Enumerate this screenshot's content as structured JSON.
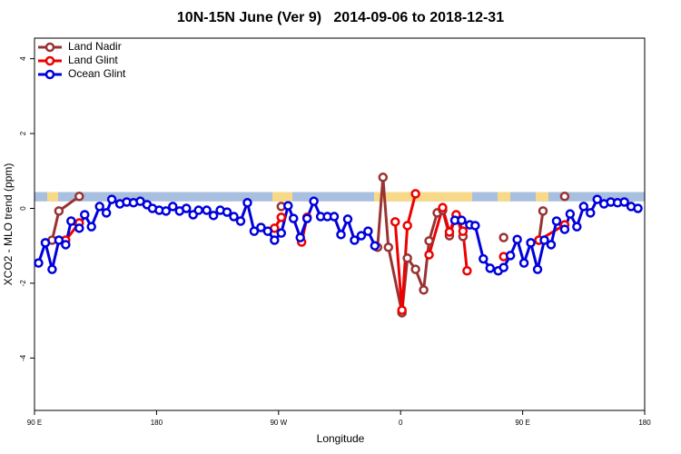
{
  "chart_data": {
    "type": "line",
    "title": "10N-15N June (Ver 9)   2014-09-06 to 2018-12-31",
    "x_label": "Longitude",
    "y_label": "XCO2 - MLO trend (ppm)",
    "xlim": [
      90,
      540
    ],
    "ylim": [
      -5.4,
      4.55
    ],
    "xticks": [
      {
        "value": 90,
        "label": "90 E"
      },
      {
        "value": 180,
        "label": "180"
      },
      {
        "value": 270,
        "label": "90 W"
      },
      {
        "value": 360,
        "label": "0"
      },
      {
        "value": 450,
        "label": "90 E"
      },
      {
        "value": 540,
        "label": "180"
      }
    ],
    "yticks": [
      -4,
      -2,
      0,
      2,
      4
    ],
    "legend": "top-left",
    "series": [
      {
        "name": "Land Nadir",
        "color": "#993333",
        "x": [
          103,
          108,
          123,
          200,
          272,
          280,
          343,
          347,
          351,
          361,
          365,
          371,
          377,
          381,
          387,
          391,
          396,
          401,
          406,
          420,
          436,
          450,
          462,
          465,
          475,
          481
        ],
        "values": [
          -0.85,
          -0.07,
          0.32,
          null,
          0.05,
          null,
          -1.04,
          0.83,
          -1.04,
          -2.79,
          -1.33,
          -1.63,
          -2.18,
          -0.87,
          -0.12,
          -0.05,
          -0.73,
          -0.19,
          -0.75,
          null,
          -0.78,
          null,
          -0.85,
          -0.07,
          null,
          0.32
        ]
      },
      {
        "name": "Land Glint",
        "color": "#ee0000",
        "x": [
          113,
          123,
          200,
          267,
          272,
          280,
          287,
          291,
          320,
          356,
          361,
          365,
          371,
          376,
          381,
          391,
          396,
          401,
          406,
          409,
          420,
          436,
          450,
          462,
          481
        ],
        "values": [
          -0.85,
          -0.39,
          null,
          -0.53,
          -0.24,
          null,
          -0.9,
          -0.24,
          null,
          -0.36,
          -2.72,
          -0.46,
          0.39,
          null,
          -1.24,
          0.02,
          -0.63,
          -0.17,
          -0.61,
          -1.67,
          null,
          -1.29,
          null,
          -0.85,
          -0.44
        ]
      },
      {
        "name": "Ocean Glint",
        "color": "#0000dd",
        "x": [
          93,
          98,
          103,
          108,
          113,
          117,
          123,
          127,
          132,
          138,
          143,
          147,
          153,
          158,
          163,
          168,
          173,
          177,
          182,
          187,
          192,
          197,
          202,
          207,
          211,
          217,
          222,
          227,
          232,
          237,
          242,
          247,
          252,
          257,
          262,
          267,
          272,
          277,
          281,
          286,
          291,
          296,
          301,
          306,
          311,
          316,
          321,
          326,
          331,
          336,
          341,
          370,
          400,
          405,
          411,
          415,
          421,
          426,
          432,
          436,
          441,
          446,
          451,
          456,
          461,
          466,
          471,
          475,
          481,
          485,
          490,
          495,
          500,
          505,
          510,
          515,
          520,
          525,
          530,
          535
        ],
        "values": [
          -1.46,
          -0.92,
          -1.63,
          -0.85,
          -0.97,
          -0.34,
          -0.53,
          -0.17,
          -0.49,
          0.05,
          -0.12,
          0.24,
          0.12,
          0.17,
          0.15,
          0.19,
          0.1,
          0,
          -0.05,
          -0.07,
          0.05,
          -0.07,
          0,
          -0.17,
          -0.05,
          -0.05,
          -0.19,
          -0.05,
          -0.1,
          -0.22,
          -0.34,
          0.15,
          -0.61,
          -0.51,
          -0.61,
          -0.85,
          -0.66,
          0.07,
          -0.27,
          -0.78,
          -0.27,
          0.19,
          -0.22,
          -0.22,
          -0.22,
          -0.7,
          -0.29,
          -0.85,
          -0.73,
          -0.61,
          -1,
          null,
          -0.32,
          -0.32,
          -0.44,
          -0.46,
          -1.35,
          -1.6,
          -1.67,
          -1.58,
          -1.26,
          -0.83,
          -1.46,
          -0.92,
          -1.63,
          -0.85,
          -0.97,
          -0.34,
          -0.56,
          -0.15,
          -0.49,
          0.05,
          -0.12,
          0.24,
          0.12,
          0.17,
          0.15,
          0.17,
          0.05,
          0
        ]
      }
    ]
  }
}
